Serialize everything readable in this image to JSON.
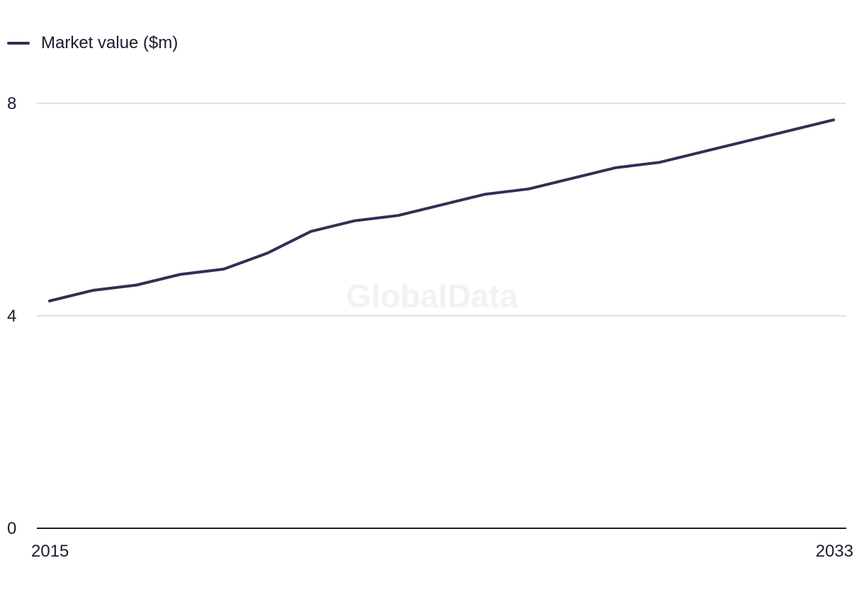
{
  "legend": {
    "label": "Market value ($m)"
  },
  "watermark": "GlobalData",
  "colors": {
    "series": "#3a2a55",
    "grid": "#d6d6d6",
    "axis": "#1f1a2e"
  },
  "chart_data": {
    "type": "line",
    "title": "",
    "xlabel": "",
    "ylabel": "",
    "x": [
      2015,
      2016,
      2017,
      2018,
      2019,
      2020,
      2021,
      2022,
      2023,
      2024,
      2025,
      2026,
      2027,
      2028,
      2029,
      2030,
      2031,
      2032,
      2033
    ],
    "series": [
      {
        "name": "Market value ($m)",
        "values": [
          4.28,
          4.48,
          4.58,
          4.78,
          4.88,
          5.18,
          5.59,
          5.79,
          5.89,
          6.09,
          6.29,
          6.39,
          6.59,
          6.79,
          6.89,
          7.09,
          7.29,
          7.49,
          7.69
        ]
      }
    ],
    "ylim": [
      0,
      8
    ],
    "xlim": [
      2015,
      2033
    ],
    "y_ticks": [
      "0",
      "4",
      "8"
    ],
    "x_ticks": [
      "2015",
      "2033"
    ],
    "grid": true,
    "legend_position": "top-left"
  }
}
